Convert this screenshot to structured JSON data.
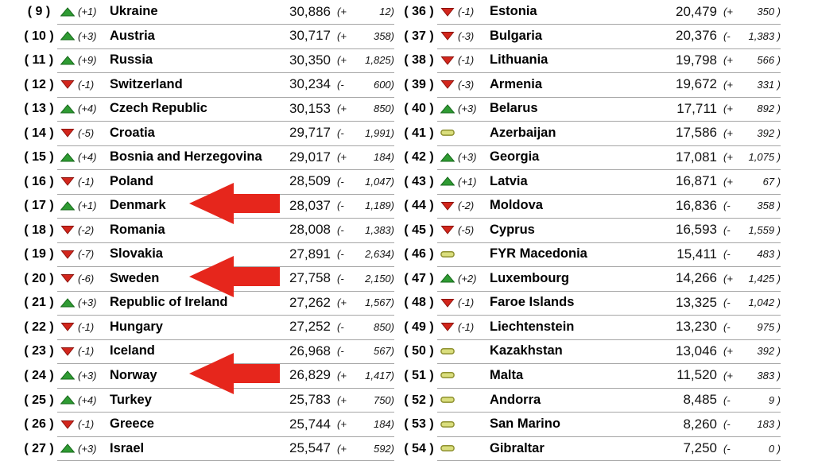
{
  "page": {
    "background": "#ffffff"
  },
  "colors": {
    "up_fill": "#2f9b33",
    "up_stroke": "#176a1b",
    "down_fill": "#d2261c",
    "down_stroke": "#8c120c",
    "same_fill": "#dade7d",
    "same_stroke": "#8f9130",
    "separator": "#a5a5a5",
    "annotation_arrow": "#e6261c",
    "text": "#000000"
  },
  "table": {
    "columns": [
      {
        "side": "left",
        "rows": [
          {
            "rank_label": "( 9 )",
            "indicator": "up",
            "movement": "(+1)",
            "country": "Ukraine",
            "points": "30,886",
            "change_open": "(+",
            "change_rest": "12)"
          },
          {
            "rank_label": "( 10 )",
            "indicator": "up",
            "movement": "(+3)",
            "country": "Austria",
            "points": "30,717",
            "change_open": "(+",
            "change_rest": "358)"
          },
          {
            "rank_label": "( 11 )",
            "indicator": "up",
            "movement": "(+9)",
            "country": "Russia",
            "points": "30,350",
            "change_open": "(+",
            "change_rest": "1,825)"
          },
          {
            "rank_label": "( 12 )",
            "indicator": "down",
            "movement": "(-1)",
            "country": "Switzerland",
            "points": "30,234",
            "change_open": "(-",
            "change_rest": "600)"
          },
          {
            "rank_label": "( 13 )",
            "indicator": "up",
            "movement": "(+4)",
            "country": "Czech Republic",
            "points": "30,153",
            "change_open": "(+",
            "change_rest": "850)"
          },
          {
            "rank_label": "( 14 )",
            "indicator": "down",
            "movement": "(-5)",
            "country": "Croatia",
            "points": "29,717",
            "change_open": "(-",
            "change_rest": "1,991)"
          },
          {
            "rank_label": "( 15 )",
            "indicator": "up",
            "movement": "(+4)",
            "country": "Bosnia and Herzegovina",
            "points": "29,017",
            "change_open": "(+",
            "change_rest": "184)"
          },
          {
            "rank_label": "( 16 )",
            "indicator": "down",
            "movement": "(-1)",
            "country": "Poland",
            "points": "28,509",
            "change_open": "(-",
            "change_rest": "1,047)"
          },
          {
            "rank_label": "( 17 )",
            "indicator": "up",
            "movement": "(+1)",
            "country": "Denmark",
            "points": "28,037",
            "change_open": "(-",
            "change_rest": "1,189)"
          },
          {
            "rank_label": "( 18 )",
            "indicator": "down",
            "movement": "(-2)",
            "country": "Romania",
            "points": "28,008",
            "change_open": "(-",
            "change_rest": "1,383)"
          },
          {
            "rank_label": "( 19 )",
            "indicator": "down",
            "movement": "(-7)",
            "country": "Slovakia",
            "points": "27,891",
            "change_open": "(-",
            "change_rest": "2,634)"
          },
          {
            "rank_label": "( 20 )",
            "indicator": "down",
            "movement": "(-6)",
            "country": "Sweden",
            "points": "27,758",
            "change_open": "(-",
            "change_rest": "2,150)"
          },
          {
            "rank_label": "( 21 )",
            "indicator": "up",
            "movement": "(+3)",
            "country": "Republic of Ireland",
            "points": "27,262",
            "change_open": "(+",
            "change_rest": "1,567)"
          },
          {
            "rank_label": "( 22 )",
            "indicator": "down",
            "movement": "(-1)",
            "country": "Hungary",
            "points": "27,252",
            "change_open": "(-",
            "change_rest": "850)"
          },
          {
            "rank_label": "( 23 )",
            "indicator": "down",
            "movement": "(-1)",
            "country": "Iceland",
            "points": "26,968",
            "change_open": "(-",
            "change_rest": "567)"
          },
          {
            "rank_label": "( 24 )",
            "indicator": "up",
            "movement": "(+3)",
            "country": "Norway",
            "points": "26,829",
            "change_open": "(+",
            "change_rest": "1,417)"
          },
          {
            "rank_label": "( 25 )",
            "indicator": "up",
            "movement": "(+4)",
            "country": "Turkey",
            "points": "25,783",
            "change_open": "(+",
            "change_rest": "750)"
          },
          {
            "rank_label": "( 26 )",
            "indicator": "down",
            "movement": "(-1)",
            "country": "Greece",
            "points": "25,744",
            "change_open": "(+",
            "change_rest": "184)"
          },
          {
            "rank_label": "( 27 )",
            "indicator": "up",
            "movement": "(+3)",
            "country": "Israel",
            "points": "25,547",
            "change_open": "(+",
            "change_rest": "592)"
          }
        ]
      },
      {
        "side": "right",
        "rows": [
          {
            "rank_label": "( 36 )",
            "indicator": "down",
            "movement": "(-1)",
            "country": "Estonia",
            "points": "20,479",
            "change_open": "(+",
            "change_rest": "350 )"
          },
          {
            "rank_label": "( 37 )",
            "indicator": "down",
            "movement": "(-3)",
            "country": "Bulgaria",
            "points": "20,376",
            "change_open": "(-",
            "change_rest": "1,383 )"
          },
          {
            "rank_label": "( 38 )",
            "indicator": "down",
            "movement": "(-1)",
            "country": "Lithuania",
            "points": "19,798",
            "change_open": "(+",
            "change_rest": "566 )"
          },
          {
            "rank_label": "( 39 )",
            "indicator": "down",
            "movement": "(-3)",
            "country": "Armenia",
            "points": "19,672",
            "change_open": "(+",
            "change_rest": "331 )"
          },
          {
            "rank_label": "( 40 )",
            "indicator": "up",
            "movement": "(+3)",
            "country": "Belarus",
            "points": "17,711",
            "change_open": "(+",
            "change_rest": "892 )"
          },
          {
            "rank_label": "( 41 )",
            "indicator": "same",
            "movement": "",
            "country": "Azerbaijan",
            "points": "17,586",
            "change_open": "(+",
            "change_rest": "392 )"
          },
          {
            "rank_label": "( 42 )",
            "indicator": "up",
            "movement": "(+3)",
            "country": "Georgia",
            "points": "17,081",
            "change_open": "(+",
            "change_rest": "1,075 )"
          },
          {
            "rank_label": "( 43 )",
            "indicator": "up",
            "movement": "(+1)",
            "country": "Latvia",
            "points": "16,871",
            "change_open": "(+",
            "change_rest": "67 )"
          },
          {
            "rank_label": "( 44 )",
            "indicator": "down",
            "movement": "(-2)",
            "country": "Moldova",
            "points": "16,836",
            "change_open": "(-",
            "change_rest": "358 )"
          },
          {
            "rank_label": "( 45 )",
            "indicator": "down",
            "movement": "(-5)",
            "country": "Cyprus",
            "points": "16,593",
            "change_open": "(-",
            "change_rest": "1,559 )"
          },
          {
            "rank_label": "( 46 )",
            "indicator": "same",
            "movement": "",
            "country": "FYR Macedonia",
            "points": "15,411",
            "change_open": "(-",
            "change_rest": "483 )"
          },
          {
            "rank_label": "( 47 )",
            "indicator": "up",
            "movement": "(+2)",
            "country": "Luxembourg",
            "points": "14,266",
            "change_open": "(+",
            "change_rest": "1,425 )"
          },
          {
            "rank_label": "( 48 )",
            "indicator": "down",
            "movement": "(-1)",
            "country": "Faroe Islands",
            "points": "13,325",
            "change_open": "(-",
            "change_rest": "1,042 )"
          },
          {
            "rank_label": "( 49 )",
            "indicator": "down",
            "movement": "(-1)",
            "country": "Liechtenstein",
            "points": "13,230",
            "change_open": "(-",
            "change_rest": "975 )"
          },
          {
            "rank_label": "( 50 )",
            "indicator": "same",
            "movement": "",
            "country": "Kazakhstan",
            "points": "13,046",
            "change_open": "(+",
            "change_rest": "392 )"
          },
          {
            "rank_label": "( 51 )",
            "indicator": "same",
            "movement": "",
            "country": "Malta",
            "points": "11,520",
            "change_open": "(+",
            "change_rest": "383 )"
          },
          {
            "rank_label": "( 52 )",
            "indicator": "same",
            "movement": "",
            "country": "Andorra",
            "points": "8,485",
            "change_open": "(-",
            "change_rest": "9 )"
          },
          {
            "rank_label": "( 53 )",
            "indicator": "same",
            "movement": "",
            "country": "San Marino",
            "points": "8,260",
            "change_open": "(-",
            "change_rest": "183 )"
          },
          {
            "rank_label": "( 54 )",
            "indicator": "same",
            "movement": "",
            "country": "Gibraltar",
            "points": "7,250",
            "change_open": "(-",
            "change_rest": "0 )"
          }
        ]
      }
    ]
  },
  "annotations": {
    "arrows": [
      {
        "points_at": "Denmark",
        "column": "left",
        "row_index": 8
      },
      {
        "points_at": "Sweden",
        "column": "left",
        "row_index": 11
      },
      {
        "points_at": "Norway",
        "column": "left",
        "row_index": 15
      }
    ]
  }
}
